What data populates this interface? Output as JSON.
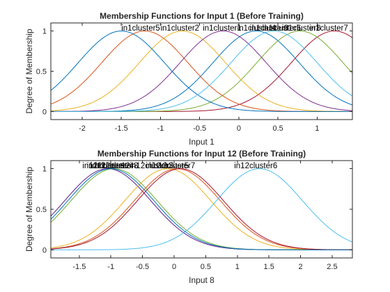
{
  "chart_data": [
    {
      "type": "line",
      "title": "Membership Functions for Input 1 (Before Training)",
      "xlabel": "Input 1",
      "ylabel": "Degree of Membership",
      "xlim": [
        -2.4,
        1.45
      ],
      "ylim": [
        -0.1,
        1.1
      ],
      "xticks": [
        -2,
        -1.5,
        -1,
        -0.5,
        0,
        0.5,
        1
      ],
      "xtick_labels": [
        "-2",
        "-1.5",
        "-1",
        "-0.5",
        "0",
        "0.5",
        "1"
      ],
      "yticks": [
        0,
        0.5,
        1
      ],
      "ytick_labels": [
        "0",
        "0.5",
        "1"
      ],
      "grid": false,
      "series": [
        {
          "name": "in1cluster7",
          "center": 1.22,
          "sigma": 0.55,
          "color": "#A2142F"
        },
        {
          "name": "in1cluster1",
          "center": 0.22,
          "sigma": 0.55,
          "color": "#0072BD"
        },
        {
          "name": "in1cluster6",
          "center": 0.78,
          "sigma": 0.55,
          "color": "#77AC30"
        },
        {
          "name": "in1cluster5",
          "center": -1.2,
          "sigma": 0.55,
          "color": "#D95319"
        },
        {
          "name": "in1cluster2",
          "center": -0.72,
          "sigma": 0.55,
          "color": "#EDB120"
        },
        {
          "name": "in1cluster3",
          "center": -0.2,
          "sigma": 0.55,
          "color": "#7E2F8E"
        },
        {
          "name": "in1cluster8",
          "center": -1.5,
          "sigma": 0.55,
          "color": "#0072BD"
        },
        {
          "name": "in1cluster4",
          "center": 0.45,
          "sigma": 0.55,
          "color": "#4DBEEE"
        }
      ],
      "labels": [
        {
          "text": "in1cluster5",
          "x": -1.5
        },
        {
          "text": "in1cluster2",
          "x": -1.0
        },
        {
          "text": "in1cluster1",
          "x": -0.46
        },
        {
          "text": "in1cluster4",
          "x": -0.02
        },
        {
          "text": "in1cluster3",
          "x": 0.14
        },
        {
          "text": "in1cluster6",
          "x": 0.3
        },
        {
          "text": "in1cluster8",
          "x": 0.55
        },
        {
          "text": "in1cluster7",
          "x": 0.9
        }
      ]
    },
    {
      "type": "line",
      "title": "Membership Functions for Input 12 (Before Training)",
      "xlabel": "Input 8",
      "ylabel": "Degree of Membership",
      "xlim": [
        -1.95,
        2.82
      ],
      "ylim": [
        -0.1,
        1.1
      ],
      "xticks": [
        -1.5,
        -1,
        -0.5,
        0,
        0.5,
        1,
        1.5,
        2,
        2.5
      ],
      "xtick_labels": [
        "-1.5",
        "-1",
        "-0.5",
        "0",
        "0.5",
        "1",
        "1.5",
        "2",
        "2.5"
      ],
      "yticks": [
        0,
        0.5,
        1
      ],
      "ytick_labels": [
        "0",
        "0.5",
        "1"
      ],
      "grid": false,
      "series": [
        {
          "name": "in12cluster1",
          "center": -1.05,
          "sigma": 0.68,
          "color": "#0072BD"
        },
        {
          "name": "in12cluster2",
          "center": -1.05,
          "sigma": 0.68,
          "color": "#7E2F8E"
        },
        {
          "name": "in12cluster3",
          "center": -0.1,
          "sigma": 0.68,
          "color": "#EDB120"
        },
        {
          "name": "in12cluster4",
          "center": -0.95,
          "sigma": 0.68,
          "color": "#77AC30"
        },
        {
          "name": "in12cluster5",
          "center": 0.05,
          "sigma": 0.68,
          "color": "#D95319"
        },
        {
          "name": "in12cluster6",
          "center": 1.35,
          "sigma": 0.68,
          "color": "#4DBEEE"
        },
        {
          "name": "in12cluster7",
          "center": 0.1,
          "sigma": 0.68,
          "color": "#A2142F"
        },
        {
          "name": "in12cluster8",
          "center": -1.0,
          "sigma": 0.68,
          "color": "#0072BD"
        }
      ],
      "labels": [
        {
          "text": "in12cluster1",
          "x": -1.45
        },
        {
          "text": "in12cluster2",
          "x": -1.38
        },
        {
          "text": "in12cluster4",
          "x": -1.32
        },
        {
          "text": "in12cluster8",
          "x": -1.25
        },
        {
          "text": "in12cluster3",
          "x": -0.7
        },
        {
          "text": "in12cluster5",
          "x": -0.45
        },
        {
          "text": "in12cluster7",
          "x": -0.35
        },
        {
          "text": "in12cluster6",
          "x": 0.95
        }
      ]
    }
  ]
}
